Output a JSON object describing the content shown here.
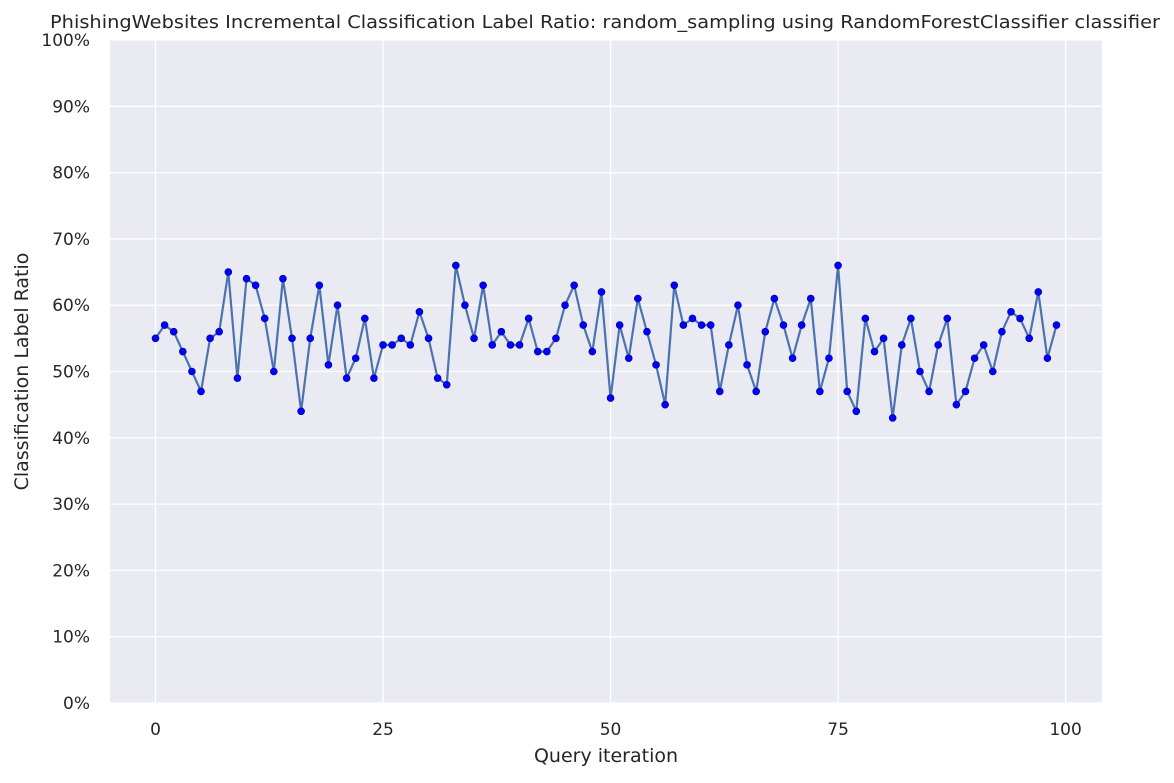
{
  "chart_data": {
    "type": "line",
    "title": "PhishingWebsites Incremental Classification Label Ratio: random_sampling using RandomForestClassifier classifier",
    "xlabel": "Query iteration",
    "ylabel": "Classification Label Ratio",
    "xlim": [
      -5,
      104
    ],
    "ylim": [
      0,
      1
    ],
    "xticks": [
      0,
      25,
      50,
      75,
      100
    ],
    "yticks": [
      0,
      0.1,
      0.2,
      0.3,
      0.4,
      0.5,
      0.6,
      0.7,
      0.8,
      0.9,
      1.0
    ],
    "ytick_labels": [
      "0%",
      "10%",
      "20%",
      "30%",
      "40%",
      "50%",
      "60%",
      "70%",
      "80%",
      "90%",
      "100%"
    ],
    "grid": true,
    "legend": "none",
    "colors": {
      "background": "#eaeaf2",
      "grid": "#ffffff",
      "line": "#4c72b0",
      "marker": "#0000ff",
      "text": "#262626"
    },
    "series": [
      {
        "x": [
          0,
          1,
          2,
          3,
          4,
          5,
          6,
          7,
          8,
          9,
          10,
          11,
          12,
          13,
          14,
          15,
          16,
          17,
          18,
          19,
          20,
          21,
          22,
          23,
          24,
          25,
          26,
          27,
          28,
          29,
          30,
          31,
          32,
          33,
          34,
          35,
          36,
          37,
          38,
          39,
          40,
          41,
          42,
          43,
          44,
          45,
          46,
          47,
          48,
          49,
          50,
          51,
          52,
          53,
          54,
          55,
          56,
          57,
          58,
          59,
          60,
          61,
          62,
          63,
          64,
          65,
          66,
          67,
          68,
          69,
          70,
          71,
          72,
          73,
          74,
          75,
          76,
          77,
          78,
          79,
          80,
          81,
          82,
          83,
          84,
          85,
          86,
          87,
          88,
          89,
          90,
          91,
          92,
          93,
          94,
          95,
          96,
          97,
          98,
          99
        ],
        "values": [
          0.55,
          0.57,
          0.56,
          0.53,
          0.5,
          0.47,
          0.55,
          0.56,
          0.65,
          0.49,
          0.64,
          0.63,
          0.58,
          0.5,
          0.64,
          0.55,
          0.44,
          0.55,
          0.63,
          0.51,
          0.6,
          0.49,
          0.52,
          0.58,
          0.49,
          0.54,
          0.54,
          0.55,
          0.54,
          0.59,
          0.55,
          0.49,
          0.48,
          0.66,
          0.6,
          0.55,
          0.63,
          0.54,
          0.56,
          0.54,
          0.54,
          0.58,
          0.53,
          0.53,
          0.55,
          0.6,
          0.63,
          0.57,
          0.53,
          0.62,
          0.46,
          0.57,
          0.52,
          0.61,
          0.56,
          0.51,
          0.45,
          0.63,
          0.57,
          0.58,
          0.57,
          0.57,
          0.47,
          0.54,
          0.6,
          0.51,
          0.47,
          0.56,
          0.61,
          0.57,
          0.52,
          0.57,
          0.61,
          0.47,
          0.52,
          0.66,
          0.47,
          0.44,
          0.58,
          0.53,
          0.55,
          0.43,
          0.54,
          0.58,
          0.5,
          0.47,
          0.54,
          0.58,
          0.45,
          0.47,
          0.52,
          0.54,
          0.5,
          0.56,
          0.59,
          0.58,
          0.55,
          0.62,
          0.52,
          0.57
        ]
      }
    ]
  }
}
